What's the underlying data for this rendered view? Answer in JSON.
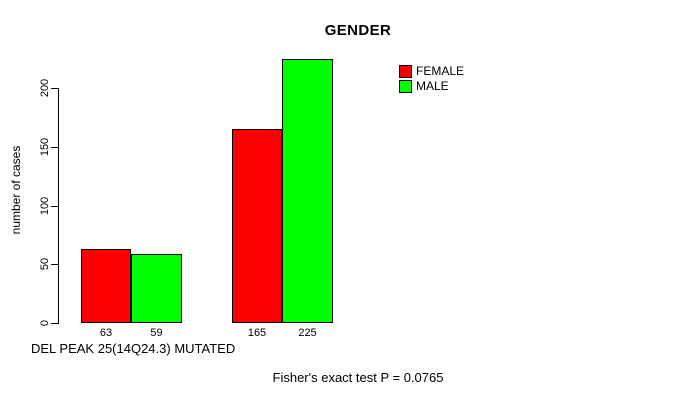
{
  "chart_data": {
    "type": "bar",
    "title": "GENDER",
    "ylabel": "number of cases",
    "xlabel": "DEL PEAK 25(14Q24.3) MUTATED",
    "annotation": "Fisher's exact test P = 0.0765",
    "series": [
      {
        "name": "FEMALE",
        "color": "#ff0000",
        "values": [
          63,
          165
        ]
      },
      {
        "name": "MALE",
        "color": "#00ff00",
        "values": [
          59,
          225
        ]
      }
    ],
    "bar_labels": [
      "63",
      "59",
      "165",
      "225"
    ],
    "yticks": [
      0,
      50,
      100,
      150,
      200
    ],
    "ylim": [
      0,
      235
    ],
    "grid": false,
    "legend_position": "top-right"
  },
  "colors": {
    "background": "#ffffff",
    "axis": "#000000",
    "text": "#000000",
    "bar_border": "#000000",
    "female": "#ff0000",
    "male": "#00ff00"
  }
}
